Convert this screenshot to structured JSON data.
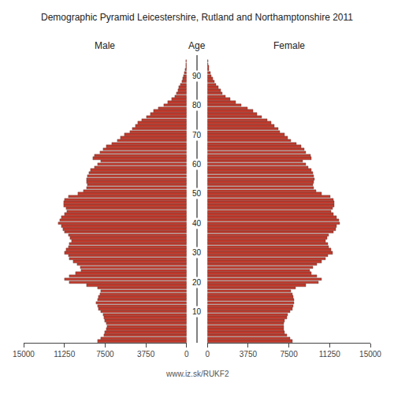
{
  "chart_data": {
    "type": "bar",
    "orientation": "horizontal",
    "title": "Demographic Pyramid Leicestershire, Rutland and Northamptonshire 2011",
    "subtitle": "www.iz.sk/RUKF2",
    "ylabel": "Age",
    "y": [
      0,
      1,
      2,
      3,
      4,
      5,
      6,
      7,
      8,
      9,
      10,
      11,
      12,
      13,
      14,
      15,
      16,
      17,
      18,
      19,
      20,
      21,
      22,
      23,
      24,
      25,
      26,
      27,
      28,
      29,
      30,
      31,
      32,
      33,
      34,
      35,
      36,
      37,
      38,
      39,
      40,
      41,
      42,
      43,
      44,
      45,
      46,
      47,
      48,
      49,
      50,
      51,
      52,
      53,
      54,
      55,
      56,
      57,
      58,
      59,
      60,
      61,
      62,
      63,
      64,
      65,
      66,
      67,
      68,
      69,
      70,
      71,
      72,
      73,
      74,
      75,
      76,
      77,
      78,
      79,
      80,
      81,
      82,
      83,
      84,
      85,
      86,
      87,
      88,
      89,
      90,
      91,
      92,
      93,
      94,
      95
    ],
    "series": [
      {
        "name": "Male",
        "color": "#c0392b",
        "values": [
          8200,
          7900,
          7600,
          7500,
          7400,
          7300,
          7400,
          7500,
          7600,
          7700,
          7900,
          8100,
          8200,
          8300,
          8200,
          8100,
          8000,
          7900,
          8200,
          9200,
          10800,
          11200,
          10800,
          10200,
          9700,
          9800,
          10100,
          10400,
          10800,
          10900,
          11200,
          11100,
          10900,
          10800,
          10600,
          10700,
          10900,
          11200,
          11400,
          11500,
          11800,
          11700,
          11500,
          11200,
          11000,
          11100,
          11300,
          11300,
          11200,
          10900,
          10000,
          9500,
          9200,
          9100,
          9200,
          9200,
          9100,
          9000,
          8800,
          8500,
          8200,
          7900,
          8600,
          8500,
          8000,
          7700,
          7400,
          6900,
          6400,
          6100,
          5700,
          5200,
          5000,
          4700,
          4500,
          4100,
          3700,
          3300,
          3000,
          2600,
          2100,
          1700,
          1400,
          1100,
          900,
          800,
          700,
          550,
          420,
          330,
          240,
          170,
          110,
          75,
          45,
          25
        ]
      },
      {
        "name": "Female",
        "color": "#c0392b",
        "values": [
          7800,
          7600,
          7300,
          7100,
          7000,
          7000,
          7000,
          7100,
          7300,
          7400,
          7600,
          7800,
          7900,
          8000,
          8000,
          7900,
          7800,
          7700,
          8100,
          9100,
          10200,
          10500,
          10100,
          9600,
          9400,
          9700,
          10100,
          10500,
          10900,
          11100,
          11500,
          11400,
          11200,
          11100,
          10900,
          11000,
          11200,
          11600,
          11800,
          11900,
          12200,
          12100,
          11900,
          11600,
          11400,
          11500,
          11700,
          11700,
          11600,
          11300,
          10500,
          10000,
          9800,
          9700,
          9800,
          9900,
          9800,
          9700,
          9600,
          9300,
          9100,
          8800,
          9600,
          9500,
          9100,
          8900,
          8600,
          8200,
          7700,
          7400,
          7100,
          6700,
          6500,
          6200,
          5900,
          5500,
          5000,
          4600,
          4200,
          3700,
          3100,
          2600,
          2100,
          1700,
          1400,
          1200,
          1000,
          800,
          620,
          490,
          360,
          260,
          170,
          110,
          70,
          40
        ]
      }
    ],
    "xlim": [
      0,
      15000
    ],
    "xticks": [
      0,
      3750,
      7500,
      11250,
      15000
    ],
    "ylim": [
      -0.5,
      97
    ],
    "yticks": [
      10,
      20,
      30,
      40,
      50,
      60,
      70,
      80,
      90
    ],
    "grid": false
  }
}
